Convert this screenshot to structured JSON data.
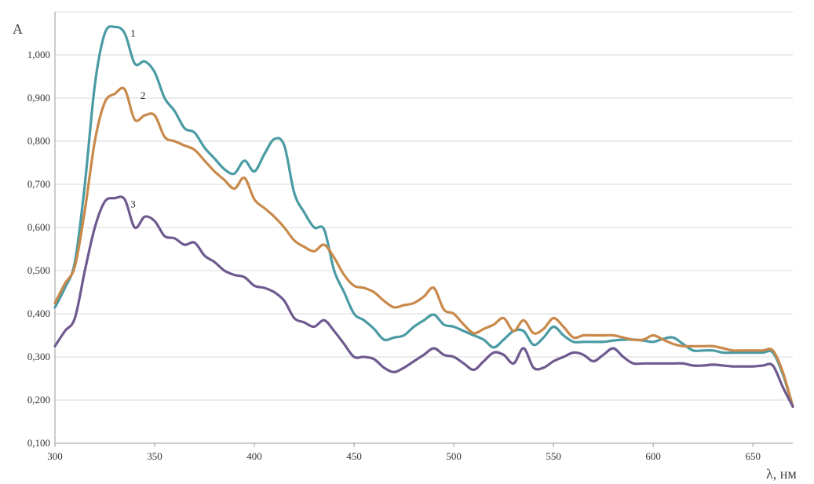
{
  "chart_data": {
    "type": "line",
    "ylabel": "A",
    "xlabel": "λ, нм",
    "xlim": [
      300,
      670
    ],
    "ylim": [
      0.1,
      1.0
    ],
    "x_ticks": [
      300,
      350,
      400,
      450,
      500,
      550,
      600,
      650
    ],
    "x_tick_labels": [
      "300",
      "350",
      "400",
      "450",
      "500",
      "550",
      "600",
      "650"
    ],
    "y_ticks": [
      0.1,
      0.2,
      0.3,
      0.4,
      0.5,
      0.6,
      0.7,
      0.8,
      0.9,
      1.0
    ],
    "y_tick_labels": [
      "0,100",
      "0,200",
      "0,300",
      "0,400",
      "0,500",
      "0,600",
      "0,700",
      "0,800",
      "0,900",
      "1,000"
    ],
    "grid": "horizontal",
    "series": [
      {
        "name": "1",
        "color": "#4a9ba4",
        "x": [
          300,
          305,
          310,
          315,
          320,
          325,
          330,
          335,
          340,
          345,
          350,
          355,
          360,
          365,
          370,
          375,
          380,
          385,
          390,
          395,
          400,
          405,
          410,
          415,
          420,
          425,
          430,
          435,
          440,
          445,
          450,
          455,
          460,
          465,
          470,
          475,
          480,
          485,
          490,
          495,
          500,
          505,
          510,
          515,
          520,
          525,
          530,
          535,
          540,
          545,
          550,
          555,
          560,
          565,
          570,
          575,
          580,
          585,
          590,
          595,
          600,
          605,
          610,
          615,
          620,
          625,
          630,
          635,
          640,
          645,
          650,
          655,
          660,
          665,
          670
        ],
        "values": [
          0.415,
          0.46,
          0.52,
          0.7,
          0.93,
          1.05,
          1.065,
          1.05,
          0.98,
          0.985,
          0.96,
          0.9,
          0.87,
          0.83,
          0.82,
          0.785,
          0.76,
          0.735,
          0.725,
          0.755,
          0.73,
          0.77,
          0.805,
          0.79,
          0.68,
          0.635,
          0.6,
          0.595,
          0.5,
          0.45,
          0.4,
          0.385,
          0.365,
          0.34,
          0.345,
          0.35,
          0.37,
          0.385,
          0.398,
          0.375,
          0.37,
          0.36,
          0.35,
          0.34,
          0.322,
          0.34,
          0.36,
          0.36,
          0.328,
          0.345,
          0.37,
          0.35,
          0.335,
          0.335,
          0.335,
          0.335,
          0.338,
          0.34,
          0.34,
          0.338,
          0.335,
          0.342,
          0.345,
          0.33,
          0.315,
          0.315,
          0.315,
          0.31,
          0.31,
          0.31,
          0.31,
          0.31,
          0.31,
          0.26,
          0.185
        ]
      },
      {
        "name": "2",
        "color": "#c8894a",
        "x": [
          300,
          305,
          310,
          315,
          320,
          325,
          330,
          335,
          340,
          345,
          350,
          355,
          360,
          365,
          370,
          375,
          380,
          385,
          390,
          395,
          400,
          405,
          410,
          415,
          420,
          425,
          430,
          435,
          440,
          445,
          450,
          455,
          460,
          465,
          470,
          475,
          480,
          485,
          490,
          495,
          500,
          505,
          510,
          515,
          520,
          525,
          530,
          535,
          540,
          545,
          550,
          555,
          560,
          565,
          570,
          575,
          580,
          585,
          590,
          595,
          600,
          605,
          610,
          615,
          620,
          625,
          630,
          635,
          640,
          645,
          650,
          655,
          660,
          665,
          670
        ],
        "values": [
          0.425,
          0.47,
          0.51,
          0.64,
          0.8,
          0.89,
          0.91,
          0.92,
          0.85,
          0.86,
          0.86,
          0.81,
          0.8,
          0.79,
          0.78,
          0.755,
          0.73,
          0.71,
          0.69,
          0.715,
          0.665,
          0.645,
          0.625,
          0.6,
          0.57,
          0.555,
          0.545,
          0.56,
          0.53,
          0.49,
          0.465,
          0.46,
          0.45,
          0.43,
          0.415,
          0.42,
          0.425,
          0.44,
          0.46,
          0.41,
          0.4,
          0.375,
          0.355,
          0.365,
          0.375,
          0.39,
          0.36,
          0.385,
          0.355,
          0.365,
          0.39,
          0.37,
          0.345,
          0.35,
          0.35,
          0.35,
          0.35,
          0.345,
          0.34,
          0.34,
          0.35,
          0.34,
          0.33,
          0.325,
          0.325,
          0.325,
          0.325,
          0.32,
          0.315,
          0.315,
          0.315,
          0.315,
          0.315,
          0.265,
          0.185
        ]
      },
      {
        "name": "3",
        "color": "#6f5a8f",
        "x": [
          300,
          305,
          310,
          315,
          320,
          325,
          330,
          335,
          340,
          345,
          350,
          355,
          360,
          365,
          370,
          375,
          380,
          385,
          390,
          395,
          400,
          405,
          410,
          415,
          420,
          425,
          430,
          435,
          440,
          445,
          450,
          455,
          460,
          465,
          470,
          475,
          480,
          485,
          490,
          495,
          500,
          505,
          510,
          515,
          520,
          525,
          530,
          535,
          540,
          545,
          550,
          555,
          560,
          565,
          570,
          575,
          580,
          585,
          590,
          595,
          600,
          605,
          610,
          615,
          620,
          625,
          630,
          635,
          640,
          645,
          650,
          655,
          660,
          665,
          670
        ],
        "values": [
          0.325,
          0.36,
          0.39,
          0.5,
          0.6,
          0.66,
          0.668,
          0.665,
          0.6,
          0.625,
          0.615,
          0.58,
          0.575,
          0.56,
          0.565,
          0.535,
          0.52,
          0.5,
          0.49,
          0.485,
          0.465,
          0.46,
          0.45,
          0.43,
          0.39,
          0.38,
          0.37,
          0.385,
          0.36,
          0.33,
          0.3,
          0.3,
          0.295,
          0.275,
          0.265,
          0.275,
          0.29,
          0.305,
          0.32,
          0.305,
          0.3,
          0.285,
          0.27,
          0.29,
          0.31,
          0.305,
          0.285,
          0.32,
          0.275,
          0.275,
          0.29,
          0.3,
          0.31,
          0.305,
          0.29,
          0.305,
          0.32,
          0.3,
          0.285,
          0.285,
          0.285,
          0.285,
          0.285,
          0.285,
          0.28,
          0.28,
          0.282,
          0.28,
          0.278,
          0.278,
          0.278,
          0.28,
          0.28,
          0.23,
          0.185
        ]
      }
    ]
  }
}
